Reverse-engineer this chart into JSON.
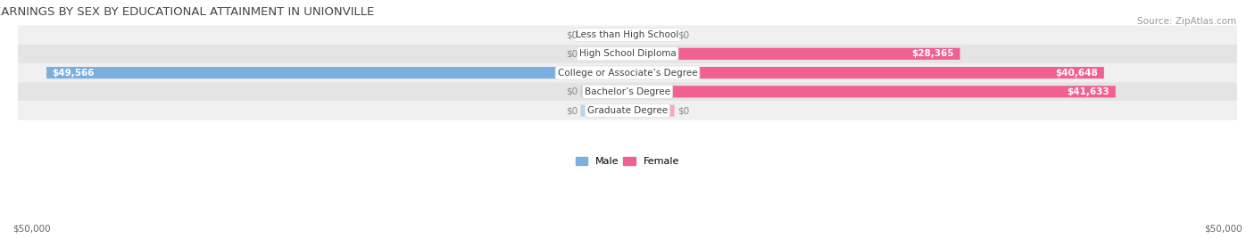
{
  "title": "EARNINGS BY SEX BY EDUCATIONAL ATTAINMENT IN UNIONVILLE",
  "source": "Source: ZipAtlas.com",
  "categories": [
    "Less than High School",
    "High School Diploma",
    "College or Associate’s Degree",
    "Bachelor’s Degree",
    "Graduate Degree"
  ],
  "male_values": [
    0,
    0,
    49566,
    0,
    0
  ],
  "female_values": [
    0,
    28365,
    40648,
    41633,
    0
  ],
  "male_color": "#7ab0e0",
  "female_color": "#f06090",
  "male_color_light": "#b8d4ee",
  "female_color_light": "#f5aac0",
  "row_bg_odd": "#f0f0f0",
  "row_bg_even": "#e4e4e4",
  "max_value": 50000,
  "axis_label_left": "$50,000",
  "axis_label_right": "$50,000",
  "title_fontsize": 9.5,
  "source_fontsize": 7.5,
  "label_fontsize": 7.5,
  "category_fontsize": 7.5,
  "legend_fontsize": 8,
  "background_color": "#ffffff"
}
